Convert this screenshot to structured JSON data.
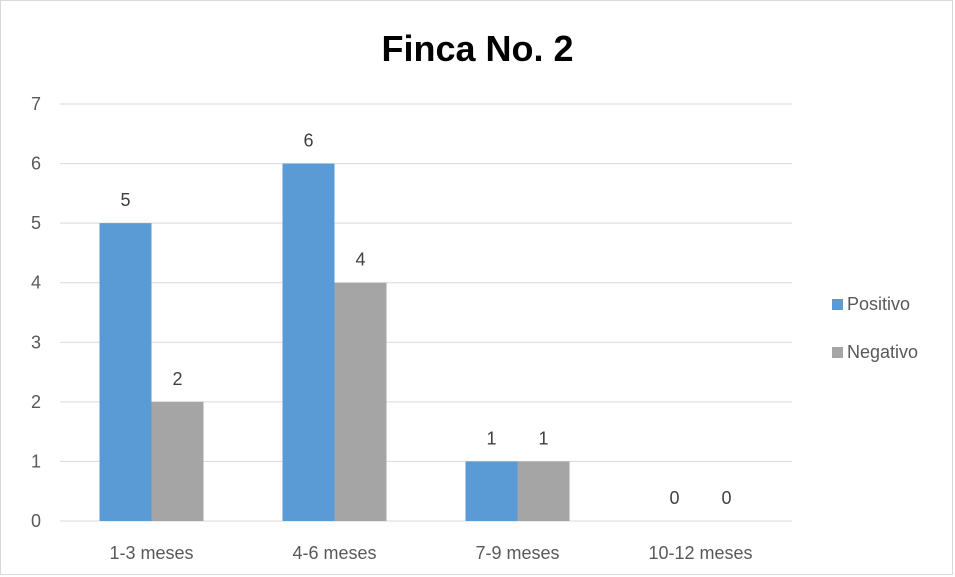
{
  "chart_data": {
    "type": "bar",
    "title": "Finca No. 2",
    "categories": [
      "1-3 meses",
      "4-6 meses",
      "7-9 meses",
      "10-12 meses"
    ],
    "series": [
      {
        "name": "Positivo",
        "values": [
          5,
          6,
          1,
          0
        ],
        "color": "#5b9bd5"
      },
      {
        "name": "Negativo",
        "values": [
          2,
          4,
          1,
          0
        ],
        "color": "#a5a5a5"
      }
    ],
    "xlabel": "",
    "ylabel": "",
    "ylim": [
      0,
      7
    ],
    "yticks": [
      0,
      1,
      2,
      3,
      4,
      5,
      6,
      7
    ],
    "grid": true,
    "legend_position": "right",
    "data_labels": true
  }
}
